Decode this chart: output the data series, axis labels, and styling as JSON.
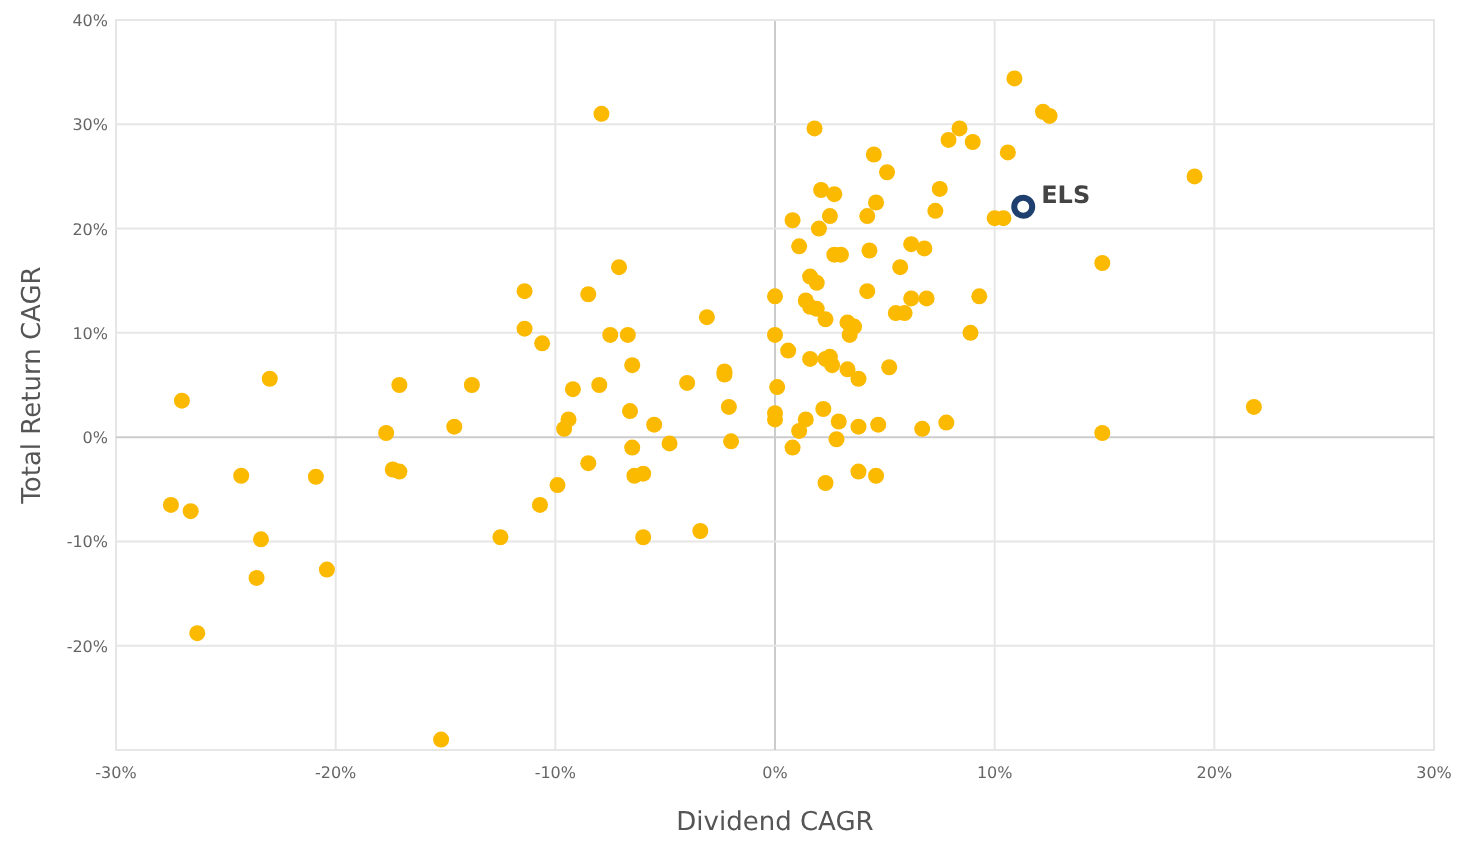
{
  "chart_data": {
    "type": "scatter",
    "xlabel": "Dividend CAGR",
    "ylabel": "Total Return CAGR",
    "xlim": [
      -30,
      30
    ],
    "ylim": [
      -30,
      40
    ],
    "xticks": [
      {
        "value": -30,
        "label": "-30%"
      },
      {
        "value": -20,
        "label": "-20%"
      },
      {
        "value": -10,
        "label": "-10%"
      },
      {
        "value": 0,
        "label": "0%"
      },
      {
        "value": 10,
        "label": "10%"
      },
      {
        "value": 20,
        "label": "20%"
      },
      {
        "value": 30,
        "label": "30%"
      }
    ],
    "yticks": [
      {
        "value": -20,
        "label": "-20%"
      },
      {
        "value": -10,
        "label": "-10%"
      },
      {
        "value": 0,
        "label": "0%"
      },
      {
        "value": 10,
        "label": "10%"
      },
      {
        "value": 20,
        "label": "20%"
      },
      {
        "value": 30,
        "label": "30%"
      },
      {
        "value": 40,
        "label": "40%"
      }
    ],
    "grid": true,
    "marker": "circle",
    "series": [
      {
        "color": "#fbb900",
        "x": [
          -27.0,
          -23.0,
          -17.1,
          -13.8,
          -9.2,
          -8.0,
          -4.0,
          0.1,
          -6.6,
          -2.1,
          0,
          0,
          -5.5,
          -9.4,
          -9.6,
          -17.7,
          -14.6,
          -4.8,
          -2.0,
          -6.5,
          -8.5,
          -27.5,
          -26.6,
          -24.3,
          -20.9,
          -17.4,
          -17.1,
          -6.4,
          -6.0,
          -9.9,
          -10.7,
          -23.4,
          -12.5,
          -6.0,
          -3.4,
          -23.6,
          -20.4,
          -26.3,
          -15.2,
          -7.9,
          -7.1,
          -11.4,
          -8.5,
          0.0,
          -3.1,
          -11.4,
          -10.6,
          -7.5,
          -6.7,
          0,
          -6.5,
          -2.3,
          -2.3,
          10.9,
          12.2,
          12.5,
          1.8,
          8.4,
          7.9,
          9.0,
          10.6,
          4.5,
          5.1,
          19.1,
          2.1,
          2.7,
          7.5,
          4.6,
          7.3,
          0.8,
          2.5,
          4.2,
          2.0,
          10.0,
          10.4,
          1.1,
          2.7,
          3.0,
          4.3,
          6.2,
          6.8,
          14.9,
          5.7,
          1.6,
          1.9,
          4.2,
          1.4,
          1.6,
          1.9,
          6.2,
          6.9,
          9.3,
          5.5,
          5.9,
          2.3,
          3.3,
          3.6,
          3.4,
          8.9,
          0.6,
          1.6,
          2.3,
          2.5,
          2.6,
          3.3,
          3.8,
          5.2,
          2.2,
          1.4,
          1.1,
          2.9,
          3.8,
          4.7,
          2.8,
          6.7,
          7.8,
          14.9,
          21.8,
          0.8,
          3.8,
          4.6,
          2.3
        ],
        "values": [
          3.5,
          5.6,
          5.0,
          5.0,
          4.6,
          5.0,
          5.2,
          4.8,
          2.5,
          2.9,
          2.3,
          1.7,
          1.2,
          1.7,
          0.8,
          0.4,
          1.0,
          -0.6,
          -0.4,
          -1.0,
          -2.5,
          -6.5,
          -7.1,
          -3.7,
          -3.8,
          -3.1,
          -3.3,
          -3.7,
          -3.5,
          -4.6,
          -6.5,
          -9.8,
          -9.6,
          -9.6,
          -9.0,
          -13.5,
          -12.7,
          -18.8,
          -29.0,
          31.0,
          16.3,
          14.0,
          13.7,
          13.5,
          11.5,
          10.4,
          9.0,
          9.8,
          9.8,
          9.8,
          6.9,
          6.3,
          6.0,
          34.4,
          31.2,
          30.8,
          29.6,
          29.6,
          28.5,
          28.3,
          27.3,
          27.1,
          25.4,
          25.0,
          23.7,
          23.3,
          23.8,
          22.5,
          21.7,
          20.8,
          21.2,
          21.2,
          20.0,
          21.0,
          21.0,
          18.3,
          17.5,
          17.5,
          17.9,
          18.5,
          18.1,
          16.7,
          16.3,
          15.4,
          14.8,
          14.0,
          13.1,
          12.5,
          12.3,
          13.3,
          13.3,
          13.5,
          11.9,
          11.9,
          11.3,
          11.0,
          10.6,
          9.8,
          10.0,
          8.3,
          7.5,
          7.5,
          7.7,
          6.9,
          6.5,
          5.6,
          6.7,
          2.7,
          1.7,
          0.6,
          1.5,
          1.0,
          1.2,
          -0.2,
          0.8,
          1.4,
          0.4,
          2.9,
          -1.0,
          -3.3,
          -3.7,
          -4.4
        ]
      },
      {
        "name": "ELS",
        "color": "#1f3f6e",
        "x": [
          11.3
        ],
        "values": [
          22.1
        ]
      }
    ]
  }
}
